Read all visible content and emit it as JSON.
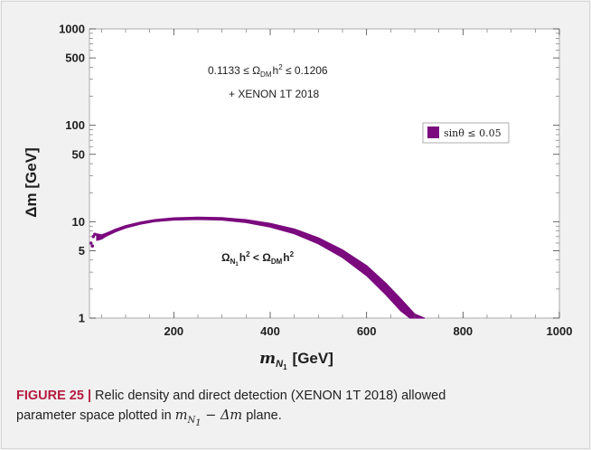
{
  "chart_data": {
    "type": "scatter",
    "title": "",
    "xlabel_main": "m",
    "xlabel_sub": "N",
    "xlabel_subsub": "1",
    "xlabel_unit": "[GeV]",
    "ylabel": "Δm [GeV]",
    "xlim": [
      25,
      1000
    ],
    "ylim": [
      1,
      1000
    ],
    "yscale": "log",
    "x_ticks": [
      "200",
      "400",
      "600",
      "800",
      "1000"
    ],
    "x_tick_values": [
      200,
      400,
      600,
      800,
      1000
    ],
    "y_ticks": [
      "1",
      "5",
      "10",
      "50",
      "100",
      "500",
      "1000"
    ],
    "y_tick_values": [
      1,
      5,
      10,
      50,
      100,
      500,
      1000
    ],
    "annotation_line1": "0.1133 ≤ Ω",
    "annotation_line1_sub": "DM",
    "annotation_line1_tail": "h",
    "annotation_line1_sup": "2",
    "annotation_line1_end": " ≤ 0.1206",
    "annotation_line2": "+ XENON 1T 2018",
    "region_label_omega": "Ω",
    "region_label_sub1": "N",
    "region_label_subsub": "1",
    "region_label_h": "h",
    "region_label_sup": "2",
    "region_label_lt": " < Ω",
    "region_label_sub2": "DM",
    "region_label_h2": "h",
    "region_label_sup2": "2",
    "series": [
      {
        "name": "sinθ ≤ 0.05",
        "color": "#7b0a7e",
        "upper": [
          [
            40,
            7.5
          ],
          [
            50,
            7.3
          ],
          [
            60,
            7.6
          ],
          [
            80,
            8.4
          ],
          [
            100,
            9.1
          ],
          [
            130,
            9.9
          ],
          [
            160,
            10.5
          ],
          [
            200,
            10.95
          ],
          [
            250,
            11.15
          ],
          [
            300,
            11.0
          ],
          [
            350,
            10.5
          ],
          [
            400,
            9.6
          ],
          [
            450,
            8.4
          ],
          [
            500,
            6.8
          ],
          [
            550,
            5.1
          ],
          [
            600,
            3.5
          ],
          [
            640,
            2.3
          ],
          [
            670,
            1.6
          ],
          [
            700,
            1.1
          ],
          [
            720,
            1.0
          ]
        ],
        "lower": [
          [
            40,
            6.4
          ],
          [
            50,
            6.6
          ],
          [
            60,
            7.1
          ],
          [
            80,
            7.9
          ],
          [
            100,
            8.6
          ],
          [
            130,
            9.4
          ],
          [
            160,
            10.0
          ],
          [
            200,
            10.4
          ],
          [
            250,
            10.55
          ],
          [
            300,
            10.4
          ],
          [
            350,
            9.8
          ],
          [
            400,
            8.8
          ],
          [
            450,
            7.5
          ],
          [
            500,
            5.9
          ],
          [
            550,
            4.25
          ],
          [
            600,
            2.75
          ],
          [
            640,
            1.75
          ],
          [
            670,
            1.2
          ],
          [
            690,
            1.0
          ]
        ],
        "isolated_points": [
          [
            28,
            6.0
          ],
          [
            31,
            5.6
          ],
          [
            33,
            7.0
          ],
          [
            36,
            7.4
          ],
          [
            42,
            7.2
          ],
          [
            45,
            6.9
          ]
        ]
      }
    ],
    "legend": {
      "position": "right",
      "label": "sinθ ≤ 0.05"
    }
  },
  "caption": {
    "lead": "FIGURE 25 |",
    "text1": " Relic density and direct detection (XENON 1T 2018) allowed",
    "text2": "parameter space plotted in ",
    "math_m": "m",
    "math_sub": "N",
    "math_subsub": "1",
    "math_rest": " − Δm",
    "text3": " plane."
  }
}
